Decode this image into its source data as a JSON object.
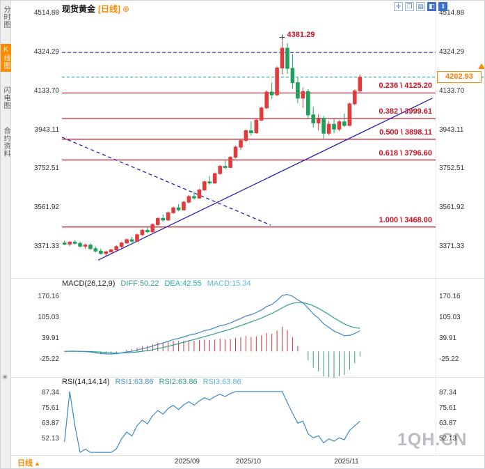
{
  "sidebar": {
    "tabs": [
      {
        "id": "time-chart",
        "label": "分时图",
        "active": false
      },
      {
        "id": "kline-chart",
        "label": "K线图",
        "active": true
      },
      {
        "id": "flash-chart",
        "label": "闪电图",
        "active": false
      },
      {
        "id": "contract-info",
        "label": "合约资料",
        "active": false
      }
    ],
    "settings_glyph": "☀"
  },
  "header": {
    "symbol": "现货黄金",
    "period": "[日线]",
    "add_glyph": "⊕",
    "toolbar": [
      {
        "name": "move-icon",
        "glyph": "✛",
        "solid": false
      },
      {
        "name": "windows-icon",
        "glyph": "❐",
        "solid": false
      },
      {
        "name": "list-icon",
        "glyph": "▤",
        "solid": false
      },
      {
        "name": "layout-icon",
        "glyph": "◧",
        "solid": true
      },
      {
        "name": "scale-icon",
        "glyph": "⇕",
        "solid": true
      }
    ]
  },
  "indicators": {
    "macd": {
      "title": "MACD(26,12,9)",
      "diff": "DIFF:50.22",
      "dea": "DEA:42.55",
      "macd": "MACD:15.34"
    },
    "rsi": {
      "title": "RSI(14,14,14)",
      "rsi1": "RSI1:63.86",
      "rsi2": "RSI2:63.86",
      "rsi3": "RSI3:63.86"
    }
  },
  "price_tag": "4202.93",
  "watermark": "1QH.CN",
  "footer": {
    "period_label": "日线",
    "arrow_glyph": "▲"
  },
  "colors": {
    "accent": "#ff8a00",
    "up": "#e23b3b",
    "down": "#1fa05a",
    "fib": "#cc1122",
    "trend": "#1f1fb0",
    "current": "#1d9e94",
    "macd_diff": "#3a87c8",
    "macd_dea": "#2f9e86",
    "hist_pos": "#cc3333",
    "hist_neg": "#2f9e6e",
    "rsi_line": "#3a87c8",
    "label_diff": "#2f9e86",
    "label_dea": "#1fb0a8",
    "label_macd": "#5ab4e5",
    "label_rsi1": "#4a90d9",
    "label_rsi2": "#2f9e86",
    "label_rsi3": "#5ab4e5",
    "axis_text": "#333333"
  },
  "chart_data": {
    "type": "candlestick",
    "symbol": "现货黄金",
    "period": "日线",
    "title": "现货黄金 [日线]",
    "x_labels": [
      "2025/09",
      "2025/10",
      "2025/11"
    ],
    "y_ticks_main": [
      "4514.88",
      "4324.29",
      "4133.70",
      "3943.11",
      "3752.51",
      "3561.92",
      "3371.33"
    ],
    "y_ticks_macd": [
      "170.16",
      "105.03",
      "39.91",
      "-25.22"
    ],
    "y_ticks_rsi": [
      "87.34",
      "75.61",
      "63.87",
      "52.13"
    ],
    "fib_levels": [
      {
        "label": "0.236 \\ 4125.20",
        "ratio": "0.236",
        "price": 4125.2
      },
      {
        "label": "0.382 \\ 3999.61",
        "ratio": "0.382",
        "price": 3999.61
      },
      {
        "label": "0.500 \\ 3898.11",
        "ratio": "0.500",
        "price": 3898.11
      },
      {
        "label": "0.618 \\ 3796.60",
        "ratio": "0.618",
        "price": 3796.6
      },
      {
        "label": "1.000 \\ 3468.00",
        "ratio": "1.000",
        "price": 3468.0
      }
    ],
    "resistance_price": 4324.29,
    "last_price": 4202.93,
    "high_annotation": {
      "text": "4381.29",
      "price": 4381.29,
      "index": 42
    },
    "trendlines": [
      {
        "style": "solid",
        "points": [
          [
            6.5,
            3306
          ],
          [
            71,
            4100
          ]
        ]
      },
      {
        "style": "dashed",
        "points": [
          [
            -0.5,
            3908
          ],
          [
            39.8,
            3477
          ]
        ]
      }
    ],
    "macd_readout": {
      "diff": 50.22,
      "dea": 42.55,
      "macd": 15.34
    },
    "rsi_readout": {
      "rsi1": 63.86,
      "rsi2": 63.86,
      "rsi3": 63.86
    },
    "candles_ohlc": [
      [
        3390,
        3402,
        3378,
        3384
      ],
      [
        3384,
        3398,
        3374,
        3394
      ],
      [
        3394,
        3404,
        3382,
        3388
      ],
      [
        3388,
        3396,
        3368,
        3374
      ],
      [
        3374,
        3386,
        3362,
        3380
      ],
      [
        3380,
        3388,
        3356,
        3362
      ],
      [
        3362,
        3372,
        3344,
        3350
      ],
      [
        3350,
        3362,
        3332,
        3338
      ],
      [
        3338,
        3352,
        3326,
        3346
      ],
      [
        3346,
        3360,
        3338,
        3356
      ],
      [
        3356,
        3378,
        3350,
        3372
      ],
      [
        3372,
        3396,
        3366,
        3390
      ],
      [
        3390,
        3412,
        3384,
        3406
      ],
      [
        3406,
        3420,
        3392,
        3398
      ],
      [
        3398,
        3436,
        3394,
        3430
      ],
      [
        3430,
        3458,
        3424,
        3452
      ],
      [
        3452,
        3468,
        3438,
        3444
      ],
      [
        3444,
        3486,
        3440,
        3480
      ],
      [
        3480,
        3516,
        3474,
        3510
      ],
      [
        3510,
        3530,
        3494,
        3502
      ],
      [
        3502,
        3544,
        3498,
        3538
      ],
      [
        3538,
        3568,
        3532,
        3562
      ],
      [
        3562,
        3580,
        3546,
        3552
      ],
      [
        3552,
        3596,
        3548,
        3590
      ],
      [
        3590,
        3624,
        3584,
        3618
      ],
      [
        3618,
        3642,
        3602,
        3610
      ],
      [
        3610,
        3656,
        3606,
        3650
      ],
      [
        3650,
        3696,
        3644,
        3690
      ],
      [
        3690,
        3718,
        3676,
        3684
      ],
      [
        3684,
        3736,
        3680,
        3730
      ],
      [
        3730,
        3772,
        3724,
        3766
      ],
      [
        3766,
        3794,
        3752,
        3760
      ],
      [
        3760,
        3816,
        3756,
        3810
      ],
      [
        3810,
        3866,
        3804,
        3860
      ],
      [
        3860,
        3898,
        3846,
        3892
      ],
      [
        3892,
        3946,
        3886,
        3940
      ],
      [
        3940,
        3986,
        3916,
        3930
      ],
      [
        3930,
        3998,
        3926,
        3992
      ],
      [
        3992,
        4058,
        3988,
        4052
      ],
      [
        4052,
        4138,
        4046,
        4130
      ],
      [
        4130,
        4176,
        4096,
        4116
      ],
      [
        4116,
        4256,
        4110,
        4248
      ],
      [
        4248,
        4381.29,
        4216,
        4345
      ],
      [
        4345,
        4370,
        4220,
        4246
      ],
      [
        4246,
        4316,
        4146,
        4176
      ],
      [
        4176,
        4200,
        4076,
        4100
      ],
      [
        4100,
        4152,
        4052,
        4132
      ],
      [
        4132,
        4144,
        3996,
        4018
      ],
      [
        4018,
        4058,
        3956,
        3978
      ],
      [
        3978,
        4022,
        3942,
        4002
      ],
      [
        4002,
        4012,
        3898,
        3928
      ],
      [
        3928,
        3988,
        3918,
        3972
      ],
      [
        3972,
        3998,
        3928,
        3948
      ],
      [
        3948,
        3992,
        3938,
        3984
      ],
      [
        3984,
        4024,
        3958,
        3966
      ],
      [
        3966,
        4078,
        3962,
        4072
      ],
      [
        4072,
        4142,
        4066,
        4136
      ],
      [
        4136,
        4216,
        4128,
        4202.93
      ]
    ]
  }
}
